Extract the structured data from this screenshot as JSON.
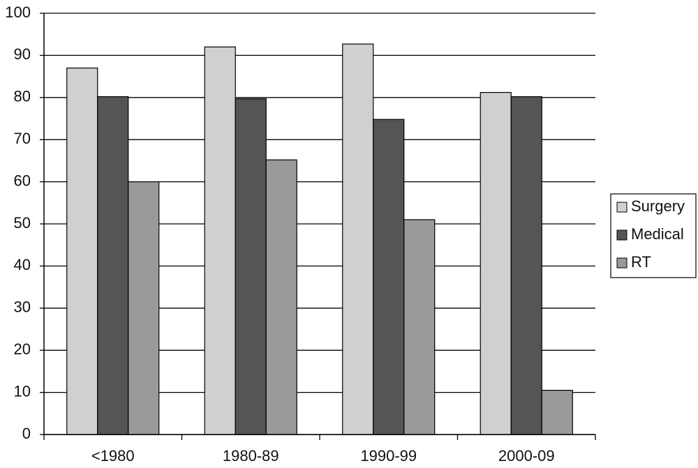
{
  "chart_data": {
    "type": "bar",
    "categories": [
      "<1980",
      "1980-89",
      "1990-99",
      "2000-09"
    ],
    "series": [
      {
        "name": "Surgery",
        "color": "#d0d0d0",
        "values": [
          87,
          92,
          92.7,
          81.2
        ]
      },
      {
        "name": "Medical",
        "color": "#555555",
        "values": [
          80.2,
          79.7,
          74.8,
          80.2
        ]
      },
      {
        "name": "RT",
        "color": "#9a9a9a",
        "values": [
          60,
          65.2,
          51,
          10.5
        ]
      }
    ],
    "ylim": [
      0,
      100
    ],
    "yticks": [
      0,
      10,
      20,
      30,
      40,
      50,
      60,
      70,
      80,
      90,
      100
    ],
    "grid": true,
    "legend": "right"
  }
}
